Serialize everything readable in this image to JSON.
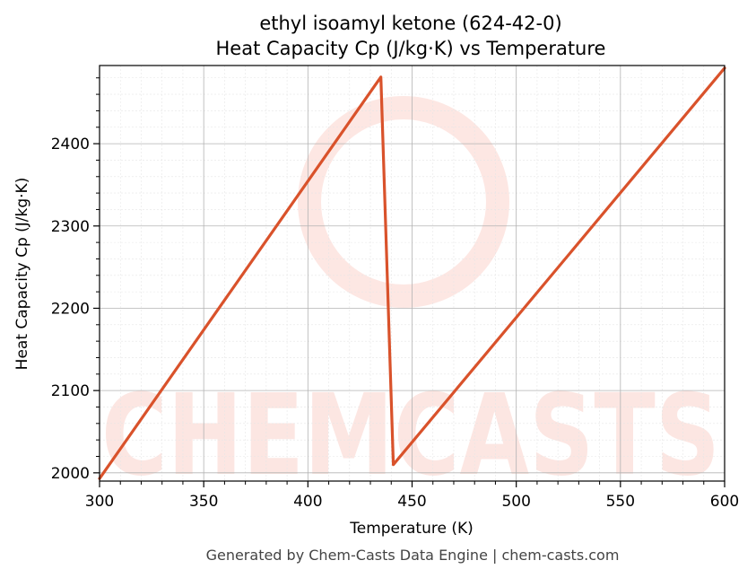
{
  "chart_data": {
    "type": "line",
    "title": "ethyl isoamyl ketone (624-42-0)",
    "subtitle": "Heat Capacity Cp (J/kg·K) vs Temperature",
    "xlabel": "Temperature (K)",
    "ylabel": "Heat Capacity Cp (J/kg·K)",
    "xlim": [
      300,
      600
    ],
    "ylim": [
      1990,
      2495
    ],
    "x_ticks": [
      300,
      350,
      400,
      450,
      500,
      550,
      600
    ],
    "y_ticks": [
      2000,
      2100,
      2200,
      2300,
      2400
    ],
    "grid": true,
    "series": [
      {
        "color": "#d9522b",
        "x": [
          300,
          435,
          441,
          600
        ],
        "y": [
          1993,
          2481,
          2010,
          2492
        ]
      }
    ]
  },
  "footer": "Generated by Chem-Casts Data Engine | chem-casts.com",
  "watermark": "CHEMCASTS"
}
